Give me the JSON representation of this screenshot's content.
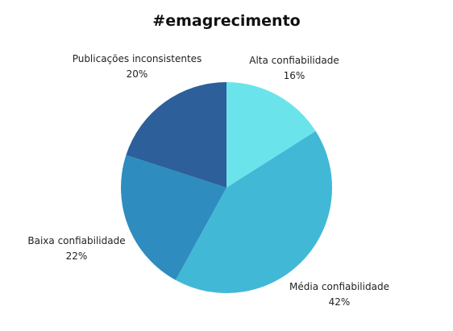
{
  "chart_data": {
    "type": "pie",
    "title": "#emagrecimento",
    "slices": [
      {
        "label": "Alta confiabilidade",
        "value": 16,
        "value_label": "16%",
        "color": "#6ae4ea"
      },
      {
        "label": "Média confiabilidade",
        "value": 42,
        "value_label": "42%",
        "color": "#42b8d7"
      },
      {
        "label": "Baixa confiabilidade",
        "value": 22,
        "value_label": "22%",
        "color": "#2e8cbf"
      },
      {
        "label": "Publicações inconsistentes",
        "value": 20,
        "value_label": "20%",
        "color": "#2d5f9a"
      }
    ],
    "start_angle_deg": 0,
    "direction": "clockwise",
    "legend": "none"
  }
}
